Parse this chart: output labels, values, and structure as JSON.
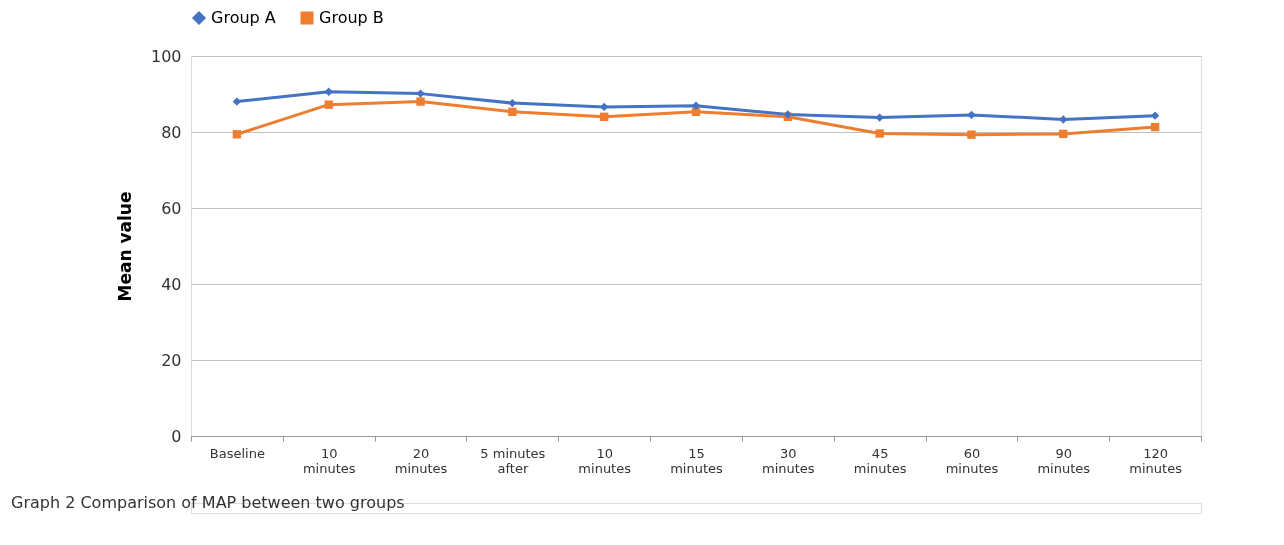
{
  "chart_data": {
    "type": "line",
    "ylabel": "Mean value",
    "categories": [
      "Baseline",
      "10 minutes",
      "20 minutes",
      "5 minutes after",
      "10 minutes",
      "15 minutes",
      "30 minutes",
      "45 minutes",
      "60 minutes",
      "90 minutes",
      "120 minutes"
    ],
    "series": [
      {
        "name": "Group A",
        "color": "#4472c4",
        "marker": "diamond",
        "values": [
          88.0,
          90.6,
          90.1,
          87.6,
          86.6,
          86.9,
          84.6,
          83.8,
          84.5,
          83.3,
          84.3
        ]
      },
      {
        "name": "Group B",
        "color": "#ed7d31",
        "marker": "square",
        "values": [
          79.4,
          87.2,
          88.0,
          85.3,
          84.0,
          85.3,
          84.0,
          79.6,
          79.3,
          79.5,
          81.3
        ]
      }
    ],
    "ylim": [
      0,
      100
    ],
    "yticks": [
      0,
      20,
      40,
      60,
      80,
      100
    ],
    "grid": "y",
    "legend": "top",
    "annotations": [
      "Graph 2  Comparison of MAP between two groups"
    ]
  }
}
